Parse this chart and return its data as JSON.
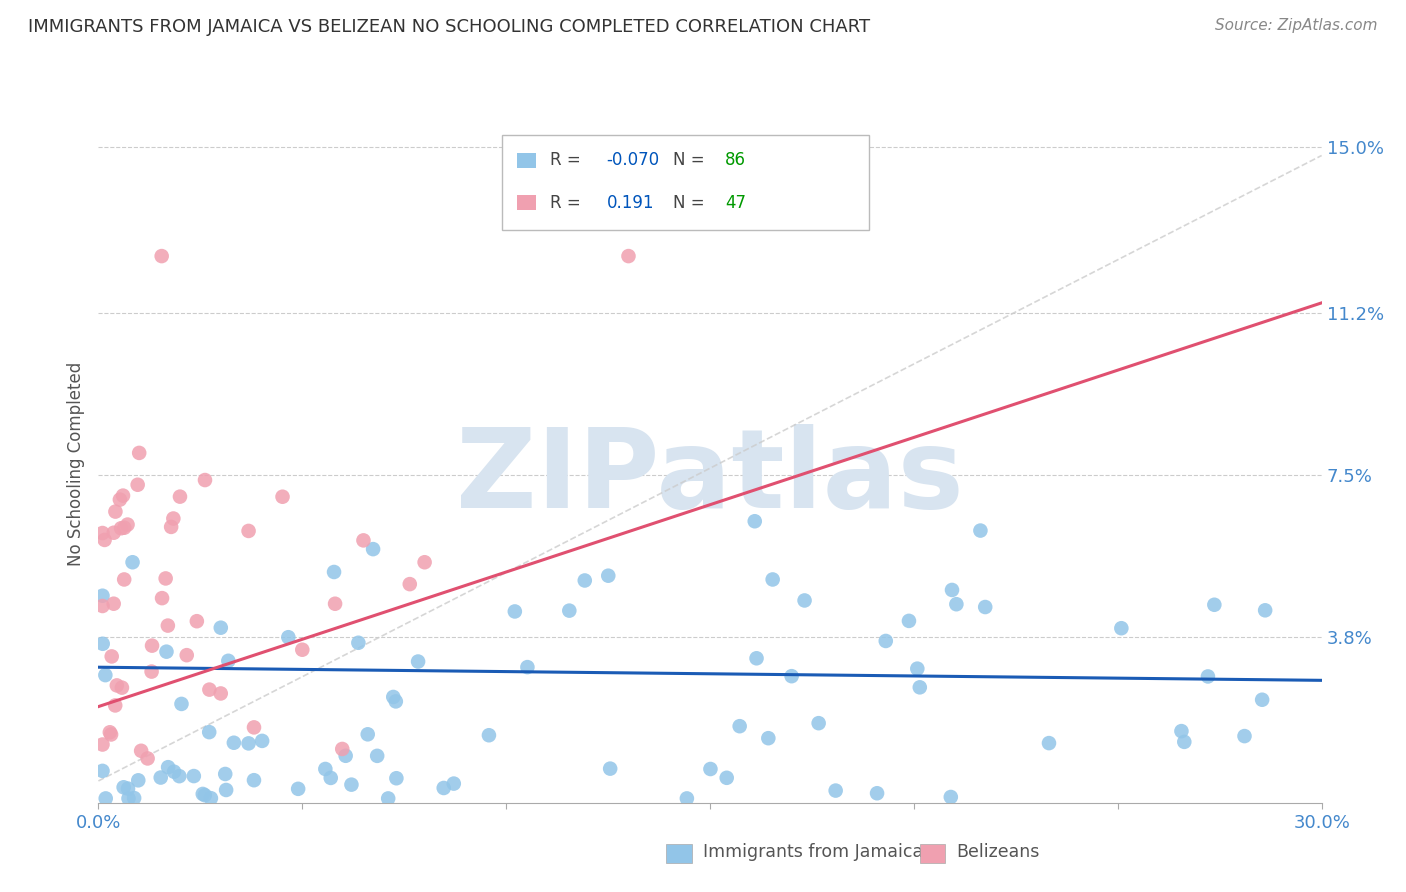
{
  "title": "IMMIGRANTS FROM JAMAICA VS BELIZEAN NO SCHOOLING COMPLETED CORRELATION CHART",
  "source": "Source: ZipAtlas.com",
  "ylabel": "No Schooling Completed",
  "xlim": [
    0.0,
    0.3
  ],
  "ylim": [
    0.0,
    0.155
  ],
  "ytick_positions": [
    0.038,
    0.075,
    0.112,
    0.15
  ],
  "ytick_labels": [
    "3.8%",
    "7.5%",
    "11.2%",
    "15.0%"
  ],
  "hline_positions": [
    0.038,
    0.075,
    0.112,
    0.15
  ],
  "blue_R": -0.07,
  "blue_N": 86,
  "pink_R": 0.191,
  "pink_N": 47,
  "blue_color": "#92C5E8",
  "pink_color": "#F0A0B0",
  "trend_blue_color": "#1A5BB5",
  "trend_pink_color": "#E05070",
  "ref_line_color": "#CCCCCC",
  "watermark_color": "#D8E4F0",
  "watermark_text": "ZIPatlas",
  "background_color": "#FFFFFF",
  "title_color": "#333333",
  "axis_label_color": "#555555",
  "tick_label_color": "#4488CC",
  "grid_color": "#CCCCCC",
  "legend_R_color": "#0055BB",
  "legend_N_color": "#009900",
  "blue_seed": 12,
  "pink_seed": 5
}
